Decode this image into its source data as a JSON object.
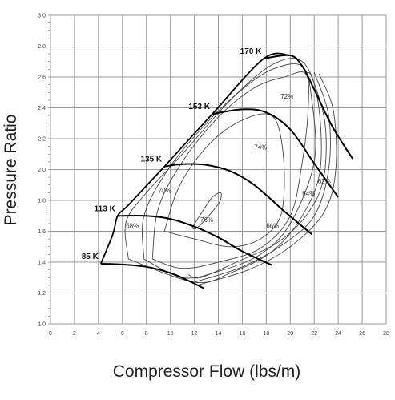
{
  "chart_data": {
    "type": "line",
    "title": "",
    "xlabel": "Compressor Flow (lbs/m)",
    "ylabel": "Pressure Ratio",
    "xlim": [
      0,
      28
    ],
    "ylim": [
      1.0,
      3.0
    ],
    "x_ticks": [
      "0",
      "2",
      "4",
      "6",
      "8",
      "10",
      "12",
      "14",
      "16",
      "18",
      "20",
      "22",
      "24",
      "26",
      "28"
    ],
    "y_ticks": [
      "1,0",
      "1,2",
      "1,4",
      "1,6",
      "1,8",
      "2,0",
      "2,2",
      "2,4",
      "2,6",
      "2,8",
      "3,0"
    ],
    "grid": true,
    "surge_line": {
      "name": "surge line",
      "points": [
        [
          4.2,
          1.39
        ],
        [
          5.2,
          1.58
        ],
        [
          5.6,
          1.7
        ],
        [
          6.5,
          1.77
        ],
        [
          9.5,
          2.02
        ],
        [
          13.5,
          2.36
        ],
        [
          17.8,
          2.72
        ],
        [
          20.0,
          2.74
        ]
      ]
    },
    "speed_lines": [
      {
        "name": "85 K",
        "label": "85 K",
        "points": [
          [
            4.2,
            1.39
          ],
          [
            6,
            1.385
          ],
          [
            8,
            1.37
          ],
          [
            10,
            1.33
          ],
          [
            11.5,
            1.28
          ],
          [
            12.8,
            1.23
          ]
        ]
      },
      {
        "name": "113 K",
        "label": "113 K",
        "points": [
          [
            5.6,
            1.7
          ],
          [
            8,
            1.7
          ],
          [
            10,
            1.68
          ],
          [
            12,
            1.63
          ],
          [
            14,
            1.56
          ],
          [
            16,
            1.47
          ],
          [
            18.5,
            1.38
          ]
        ]
      },
      {
        "name": "135 K",
        "label": "135 K",
        "points": [
          [
            9.5,
            2.02
          ],
          [
            11,
            2.035
          ],
          [
            13,
            2.03
          ],
          [
            15,
            1.99
          ],
          [
            17,
            1.9
          ],
          [
            19.5,
            1.73
          ],
          [
            21.8,
            1.58
          ]
        ]
      },
      {
        "name": "153 K",
        "label": "153 K",
        "points": [
          [
            13.5,
            2.36
          ],
          [
            16,
            2.39
          ],
          [
            18,
            2.37
          ],
          [
            20,
            2.26
          ],
          [
            22,
            2.04
          ],
          [
            24,
            1.82
          ]
        ]
      },
      {
        "name": "170 K",
        "label": "170 K",
        "points": [
          [
            17.8,
            2.72
          ],
          [
            20,
            2.74
          ],
          [
            21,
            2.67
          ],
          [
            22,
            2.52
          ],
          [
            23.5,
            2.28
          ],
          [
            25.2,
            2.07
          ]
        ]
      }
    ],
    "efficiency_islands": [
      {
        "label": "76%",
        "label_pos": [
          12.5,
          1.66
        ],
        "points": [
          [
            11.8,
            1.62
          ],
          [
            12.6,
            1.72
          ],
          [
            13.5,
            1.82
          ],
          [
            14.2,
            1.85
          ],
          [
            14.1,
            1.79
          ],
          [
            13.2,
            1.7
          ],
          [
            12.2,
            1.62
          ],
          [
            11.8,
            1.62
          ]
        ]
      },
      {
        "label": "74%",
        "label_pos": [
          17.0,
          2.13
        ],
        "points": [
          [
            9.5,
            1.6
          ],
          [
            10.5,
            1.85
          ],
          [
            12.0,
            2.05
          ],
          [
            14.0,
            2.22
          ],
          [
            16.0,
            2.32
          ],
          [
            18.0,
            2.36
          ],
          [
            19.0,
            2.28
          ],
          [
            19.5,
            2.0
          ],
          [
            19.2,
            1.7
          ],
          [
            17.5,
            1.55
          ],
          [
            15.0,
            1.5
          ],
          [
            12.0,
            1.55
          ],
          [
            9.5,
            1.6
          ]
        ]
      },
      {
        "label": "72%",
        "label_pos": [
          19.2,
          2.46
        ],
        "points": [
          [
            8.5,
            1.42
          ],
          [
            9.0,
            1.75
          ],
          [
            11.0,
            2.05
          ],
          [
            14.0,
            2.34
          ],
          [
            17.0,
            2.53
          ],
          [
            19.5,
            2.6
          ],
          [
            21.3,
            2.62
          ],
          [
            21.5,
            2.4
          ],
          [
            21.0,
            2.05
          ],
          [
            20.0,
            1.7
          ],
          [
            17.5,
            1.49
          ],
          [
            14.0,
            1.4
          ],
          [
            11.0,
            1.36
          ],
          [
            8.5,
            1.42
          ]
        ]
      },
      {
        "label": "70%",
        "label_pos": [
          9.0,
          1.85
        ],
        "points": [
          [
            7.8,
            1.42
          ],
          [
            7.8,
            1.7
          ],
          [
            9.8,
            2.0
          ],
          [
            13.0,
            2.3
          ],
          [
            16.0,
            2.52
          ],
          [
            18.5,
            2.65
          ],
          [
            21.0,
            2.67
          ],
          [
            21.8,
            2.45
          ],
          [
            22.0,
            2.05
          ],
          [
            20.0,
            1.65
          ],
          [
            17.5,
            1.45
          ],
          [
            14.0,
            1.34
          ],
          [
            11.0,
            1.3
          ],
          [
            7.8,
            1.42
          ]
        ]
      },
      {
        "label": "68%",
        "label_pos": [
          6.3,
          1.62
        ],
        "points": [
          [
            6.5,
            1.42
          ],
          [
            6.3,
            1.66
          ],
          [
            8.0,
            1.85
          ],
          [
            11.0,
            2.1
          ],
          [
            15.0,
            2.45
          ],
          [
            18.5,
            2.68
          ],
          [
            21.0,
            2.7
          ],
          [
            22.3,
            2.45
          ],
          [
            22.5,
            2.0
          ],
          [
            21.0,
            1.7
          ],
          [
            18.5,
            1.47
          ],
          [
            15.0,
            1.33
          ],
          [
            12.0,
            1.27
          ],
          [
            6.5,
            1.42
          ]
        ]
      },
      {
        "label": "66%",
        "label_pos": [
          18.0,
          1.62
        ],
        "points": [
          [
            11.5,
            1.32
          ],
          [
            12.5,
            1.3
          ],
          [
            15.5,
            1.4
          ],
          [
            19.0,
            1.53
          ],
          [
            21.5,
            1.72
          ],
          [
            22.8,
            1.95
          ],
          [
            22.9,
            2.3
          ],
          [
            21.8,
            2.6
          ],
          [
            21.3,
            2.62
          ]
        ]
      },
      {
        "label": "64%",
        "label_pos": [
          21.0,
          1.83
        ],
        "points": [
          [
            12.0,
            1.27
          ],
          [
            16.0,
            1.37
          ],
          [
            19.5,
            1.52
          ],
          [
            22.0,
            1.7
          ],
          [
            23.2,
            2.0
          ],
          [
            23.2,
            2.35
          ],
          [
            22.0,
            2.63
          ]
        ]
      },
      {
        "label": "62%",
        "label_pos": [
          22.3,
          1.91
        ],
        "points": [
          [
            12.2,
            1.25
          ],
          [
            16.5,
            1.35
          ],
          [
            20.0,
            1.5
          ],
          [
            22.8,
            1.72
          ],
          [
            23.8,
            2.0
          ],
          [
            23.6,
            2.38
          ],
          [
            22.4,
            2.62
          ]
        ]
      }
    ],
    "styles": {
      "grid_color": "#999999",
      "outer_line_color": "#000000",
      "island_line_color": "#444444",
      "background": "#ffffff"
    }
  }
}
